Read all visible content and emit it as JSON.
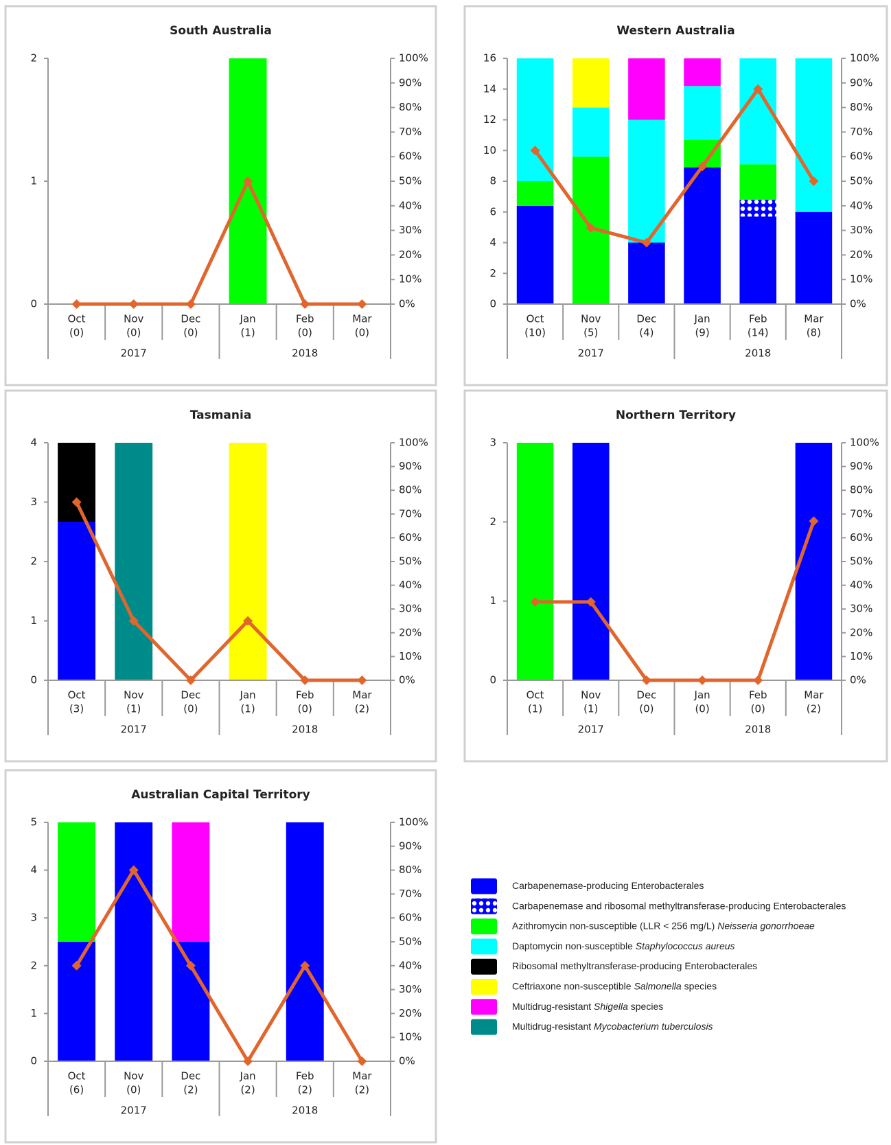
{
  "chart_data": [
    {
      "type": "bar",
      "title": "South Australia",
      "categories": [
        "Oct",
        "Nov",
        "Dec",
        "Jan",
        "Feb",
        "Mar"
      ],
      "category_notes": [
        "(0)",
        "(0)",
        "(0)",
        "(1)",
        "(0)",
        "(0)"
      ],
      "years": [
        "2017",
        "2017",
        "2017",
        "2018",
        "2018",
        "2018"
      ],
      "series": [
        {
          "color": "#00ff00",
          "values": [
            0,
            0,
            0,
            2,
            0,
            0
          ]
        }
      ],
      "line": {
        "color": "#e0662e",
        "axis": "y2",
        "values": [
          0,
          0,
          0,
          50,
          0,
          0
        ]
      },
      "ylim": [
        0,
        2
      ],
      "yticks": [
        0,
        1,
        2
      ],
      "y2lim": [
        0,
        100
      ],
      "y2ticks": [
        {
          "value": 0,
          "label": "0%"
        },
        {
          "value": 10,
          "label": "10%"
        },
        {
          "value": 20,
          "label": "20%"
        },
        {
          "value": 30,
          "label": "30%"
        },
        {
          "value": 40,
          "label": "40%"
        },
        {
          "value": 50,
          "label": "50%"
        },
        {
          "value": 60,
          "label": "60%"
        },
        {
          "value": 70,
          "label": "70%"
        },
        {
          "value": 80,
          "label": "80%"
        },
        {
          "value": 90,
          "label": "90%"
        },
        {
          "value": 100,
          "label": "100%"
        }
      ]
    },
    {
      "type": "bar",
      "title": "Western Australia",
      "categories": [
        "Oct",
        "Nov",
        "Dec",
        "Jan",
        "Feb",
        "Mar"
      ],
      "category_notes": [
        "(10)",
        "(5)",
        "(4)",
        "(9)",
        "(14)",
        "(8)"
      ],
      "years": [
        "2017",
        "2017",
        "2017",
        "2018",
        "2018",
        "2018"
      ],
      "series": [
        {
          "color": "#0000ff",
          "values": [
            6.4,
            0,
            4,
            8.9,
            5.7,
            6
          ]
        },
        {
          "color": "#0000ff",
          "pattern": "dots",
          "values": [
            0,
            0,
            0,
            0,
            1.1,
            0
          ]
        },
        {
          "color": "#00ff00",
          "values": [
            1.6,
            9.6,
            0,
            1.8,
            2.3,
            0
          ]
        },
        {
          "color": "#00ffff",
          "values": [
            8,
            3.2,
            8,
            3.5,
            6.9,
            10
          ]
        },
        {
          "color": "#ffff00",
          "values": [
            0,
            3.2,
            0,
            0,
            0,
            0
          ]
        },
        {
          "color": "#ff00ff",
          "values": [
            0,
            0,
            4,
            1.8,
            0,
            0
          ]
        }
      ],
      "line": {
        "color": "#e0662e",
        "axis": "y2",
        "values": [
          62.5,
          31,
          25,
          56,
          87.5,
          50
        ]
      },
      "ylim": [
        0,
        16
      ],
      "yticks": [
        0,
        2,
        4,
        6,
        8,
        10,
        12,
        14,
        16
      ],
      "y2lim": [
        0,
        100
      ],
      "y2ticks": [
        {
          "value": 0,
          "label": "0%"
        },
        {
          "value": 10,
          "label": "10%"
        },
        {
          "value": 20,
          "label": "20%"
        },
        {
          "value": 30,
          "label": "30%"
        },
        {
          "value": 40,
          "label": "40%"
        },
        {
          "value": 50,
          "label": "50%"
        },
        {
          "value": 60,
          "label": "60%"
        },
        {
          "value": 70,
          "label": "70%"
        },
        {
          "value": 80,
          "label": "80%"
        },
        {
          "value": 90,
          "label": "90%"
        },
        {
          "value": 100,
          "label": "100%"
        }
      ]
    },
    {
      "type": "bar",
      "title": "Tasmania",
      "categories": [
        "Oct",
        "Nov",
        "Dec",
        "Jan",
        "Feb",
        "Mar"
      ],
      "category_notes": [
        "(3)",
        "(1)",
        "(0)",
        "(1)",
        "(0)",
        "(2)"
      ],
      "years": [
        "2017",
        "2017",
        "2017",
        "2018",
        "2018",
        "2018"
      ],
      "series": [
        {
          "color": "#0000ff",
          "values": [
            2.67,
            0,
            0,
            0,
            0,
            0
          ]
        },
        {
          "color": "#000000",
          "values": [
            1.33,
            0,
            0,
            0,
            0,
            0
          ]
        },
        {
          "color": "#008b8b",
          "values": [
            0,
            4,
            0,
            0,
            0,
            0
          ]
        },
        {
          "color": "#ffff00",
          "values": [
            0,
            0,
            0,
            4,
            0,
            0
          ]
        }
      ],
      "line": {
        "color": "#e0662e",
        "axis": "y2",
        "values": [
          75,
          25,
          0,
          25,
          0,
          0
        ]
      },
      "ylim": [
        0,
        4
      ],
      "yticks": [
        0,
        1,
        2,
        3,
        4
      ],
      "y2lim": [
        0,
        100
      ],
      "y2ticks": [
        {
          "value": 0,
          "label": "0%"
        },
        {
          "value": 10,
          "label": "10%"
        },
        {
          "value": 20,
          "label": "20%"
        },
        {
          "value": 30,
          "label": "30%"
        },
        {
          "value": 40,
          "label": "40%"
        },
        {
          "value": 50,
          "label": "50%"
        },
        {
          "value": 60,
          "label": "60%"
        },
        {
          "value": 70,
          "label": "70%"
        },
        {
          "value": 80,
          "label": "80%"
        },
        {
          "value": 90,
          "label": "90%"
        },
        {
          "value": 100,
          "label": "100%"
        }
      ]
    },
    {
      "type": "bar",
      "title": "Northern Territory",
      "categories": [
        "Oct",
        "Nov",
        "Dec",
        "Jan",
        "Feb",
        "Mar"
      ],
      "category_notes": [
        "(1)",
        "(1)",
        "(0)",
        "(0)",
        "(0)",
        "(2)"
      ],
      "years": [
        "2017",
        "2017",
        "2017",
        "2018",
        "2018",
        "2018"
      ],
      "series": [
        {
          "color": "#0000ff",
          "values": [
            0,
            3,
            0,
            0,
            0,
            3
          ]
        },
        {
          "color": "#00ff00",
          "values": [
            3,
            0,
            0,
            0,
            0,
            0
          ]
        }
      ],
      "line": {
        "color": "#e0662e",
        "axis": "y2",
        "values": [
          33,
          33,
          0,
          0,
          0,
          67
        ]
      },
      "ylim": [
        0,
        3
      ],
      "yticks": [
        0,
        1,
        2,
        3
      ],
      "y2lim": [
        0,
        100
      ],
      "y2ticks": [
        {
          "value": 0,
          "label": "0%"
        },
        {
          "value": 10,
          "label": "10%"
        },
        {
          "value": 20,
          "label": "20%"
        },
        {
          "value": 30,
          "label": "30%"
        },
        {
          "value": 40,
          "label": "40%"
        },
        {
          "value": 50,
          "label": "50%"
        },
        {
          "value": 60,
          "label": "60%"
        },
        {
          "value": 70,
          "label": "70%"
        },
        {
          "value": 80,
          "label": "80%"
        },
        {
          "value": 90,
          "label": "90%"
        },
        {
          "value": 100,
          "label": "100%"
        }
      ]
    },
    {
      "type": "bar",
      "title": "Australian Capital Territory",
      "categories": [
        "Oct",
        "Nov",
        "Dec",
        "Jan",
        "Feb",
        "Mar"
      ],
      "category_notes": [
        "(6)",
        "(0)",
        "(2)",
        "(2)",
        "(2)",
        "(2)"
      ],
      "years": [
        "2017",
        "2017",
        "2017",
        "2018",
        "2018",
        "2018"
      ],
      "series": [
        {
          "color": "#0000ff",
          "values": [
            2.5,
            5,
            2.5,
            0,
            5,
            0
          ]
        },
        {
          "color": "#00ff00",
          "values": [
            2.5,
            0,
            0,
            0,
            0,
            0
          ]
        },
        {
          "color": "#ff00ff",
          "values": [
            0,
            0,
            2.5,
            0,
            0,
            0
          ]
        }
      ],
      "line": {
        "color": "#e0662e",
        "axis": "y2",
        "values": [
          40,
          80,
          40,
          0,
          40,
          0
        ]
      },
      "ylim": [
        0,
        5
      ],
      "yticks": [
        0,
        1,
        2,
        3,
        4,
        5
      ],
      "y2lim": [
        0,
        100
      ],
      "y2ticks": [
        {
          "value": 0,
          "label": "0%"
        },
        {
          "value": 10,
          "label": "10%"
        },
        {
          "value": 20,
          "label": "20%"
        },
        {
          "value": 30,
          "label": "30%"
        },
        {
          "value": 40,
          "label": "40%"
        },
        {
          "value": 50,
          "label": "50%"
        },
        {
          "value": 60,
          "label": "60%"
        },
        {
          "value": 70,
          "label": "70%"
        },
        {
          "value": 80,
          "label": "80%"
        },
        {
          "value": 90,
          "label": "90%"
        },
        {
          "value": 100,
          "label": "100%"
        }
      ]
    }
  ],
  "legend": [
    {
      "color": "#0000ff",
      "parts": [
        {
          "text": "Carbapenemase-producing Enterobacterales",
          "italic": false
        }
      ]
    },
    {
      "color": "#0000ff",
      "pattern": "dots",
      "parts": [
        {
          "text": "Carbapenemase and ribosomal methyltransferase-producing Enterobacterales",
          "italic": false
        }
      ]
    },
    {
      "color": "#00ff00",
      "parts": [
        {
          "text": "Azithromycin non-susceptible (LLR < 256 mg/L)",
          "italic": false
        },
        {
          "text": "Neisseria gonorrhoeae",
          "italic": true
        }
      ]
    },
    {
      "color": "#00ffff",
      "parts": [
        {
          "text": "Daptomycin non-susceptible",
          "italic": false
        },
        {
          "text": "Staphylococcus aureus",
          "italic": true
        }
      ]
    },
    {
      "color": "#000000",
      "parts": [
        {
          "text": "Ribosomal methyltransferase-producing Enterobacterales",
          "italic": false
        }
      ]
    },
    {
      "color": "#ffff00",
      "parts": [
        {
          "text": "Ceftriaxone non-susceptible",
          "italic": false
        },
        {
          "text": "Salmonella",
          "italic": true
        },
        {
          "text": "species",
          "italic": false
        }
      ]
    },
    {
      "color": "#ff00ff",
      "parts": [
        {
          "text": "Multidrug-resistant",
          "italic": false
        },
        {
          "text": "Shigella",
          "italic": true
        },
        {
          "text": "species",
          "italic": false
        }
      ]
    },
    {
      "color": "#008b8b",
      "parts": [
        {
          "text": "Multidrug-resistant",
          "italic": false
        },
        {
          "text": "Mycobacterium tuberculosis",
          "italic": true
        }
      ]
    }
  ]
}
